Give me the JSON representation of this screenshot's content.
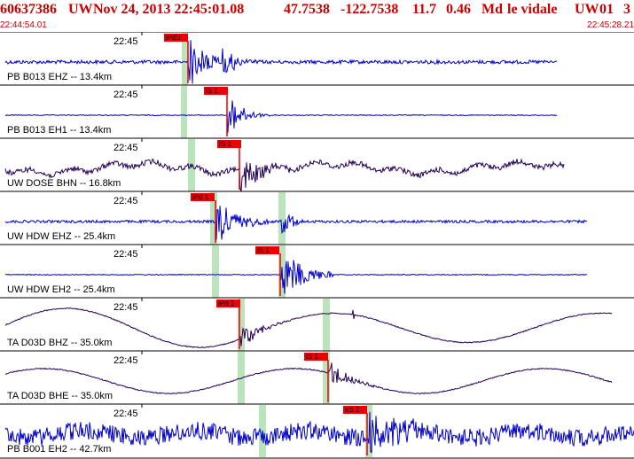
{
  "header": {
    "event_id": "60637386",
    "network": "UW",
    "datetime": "Nov 24, 2013 22:45:01.08",
    "latitude": "47.7538",
    "longitude": "-122.7538",
    "depth": "11.7",
    "magnitude": "0.46",
    "mag_type": "Md",
    "analyst": "le vidale",
    "source": "UW",
    "version": "01",
    "trailing": "3"
  },
  "time_window": {
    "start": "22:44:54.01",
    "end": "22:45:28.21"
  },
  "traces": [
    {
      "label": "PB B013 EHZ -- 13.4km",
      "time_label": "22:45",
      "pick": "iPd0",
      "color": "#0000cc",
      "pick_type": "P"
    },
    {
      "label": "PB B013 EH1 -- 13.4km",
      "time_label": "22:45",
      "pick": "iS 1",
      "color": "#0000cc",
      "pick_type": "S"
    },
    {
      "label": "UW DOSE BHN -- 16.8km",
      "time_label": "22:45",
      "pick": "iS 1",
      "color": "#220055",
      "pick_type": "S"
    },
    {
      "label": "UW HDW EHZ -- 25.4km",
      "time_label": "22:45",
      "pick": "iPd 1",
      "color": "#0000cc",
      "pick_type": "P"
    },
    {
      "label": "UW HDW EH2 -- 25.4km",
      "time_label": "22:45",
      "pick": "iS 1",
      "color": "#0000cc",
      "pick_type": "S"
    },
    {
      "label": "TA D03D BHZ -- 35.0km",
      "time_label": "22:45",
      "pick": "iPd 1",
      "color": "#220055",
      "pick_type": "P"
    },
    {
      "label": "TA D03D BHE -- 35.0km",
      "time_label": "22:45",
      "pick": "iS 1",
      "color": "#220055",
      "pick_type": "S"
    },
    {
      "label": "PB B001 EH2 -- 42.7km",
      "time_label": "22:45",
      "pick": "eS 2",
      "color": "#0000cc",
      "pick_type": "S"
    }
  ]
}
